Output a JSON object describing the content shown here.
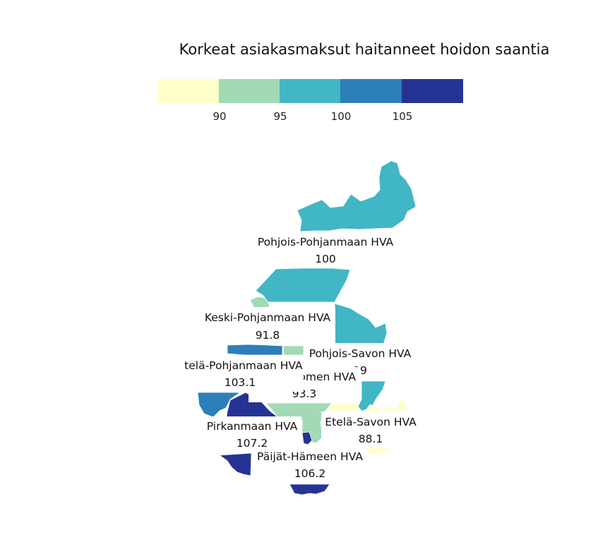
{
  "title": "Korkeat asiakasmaksut haitanneet hoidon saantia",
  "legend": {
    "bins": [
      {
        "color": "#ffffcc"
      },
      {
        "color": "#a1dab4"
      },
      {
        "color": "#41b6c4"
      },
      {
        "color": "#2c7fb8"
      },
      {
        "color": "#253494"
      }
    ],
    "tick_labels": [
      "90",
      "95",
      "100",
      "105"
    ]
  },
  "regions": [
    {
      "key": "pohjois_pohjanmaa",
      "name": "Pohjois-Pohjanmaan HVA",
      "value": "100",
      "color": "#41b6c4"
    },
    {
      "key": "keski_pohjanmaa",
      "name": "Keski-Pohjanmaan HVA",
      "value": "91.8",
      "color": "#a1dab4"
    },
    {
      "key": "pohjois_savo",
      "name": "Pohjois-Savon HVA",
      "value": "99",
      "color": "#41b6c4"
    },
    {
      "key": "etela_pohjanmaa",
      "name": "Etelä-Pohjanmaan HVA",
      "value": "103.1",
      "color": "#2c7fb8"
    },
    {
      "key": "keski_suomi",
      "name": "Keski-Suomen HVA",
      "value": "93.3",
      "color": "#a1dab4"
    },
    {
      "key": "pirkanmaa",
      "name": "Pirkanmaan HVA",
      "value": "107.2",
      "color": "#253494"
    },
    {
      "key": "etela_savo",
      "name": "Etelä-Savon HVA",
      "value": "88.1",
      "color": "#ffffcc"
    },
    {
      "key": "paijat_hame",
      "name": "Päijät-Hämeen HVA",
      "value": "106.2",
      "color": "#253494"
    }
  ]
}
